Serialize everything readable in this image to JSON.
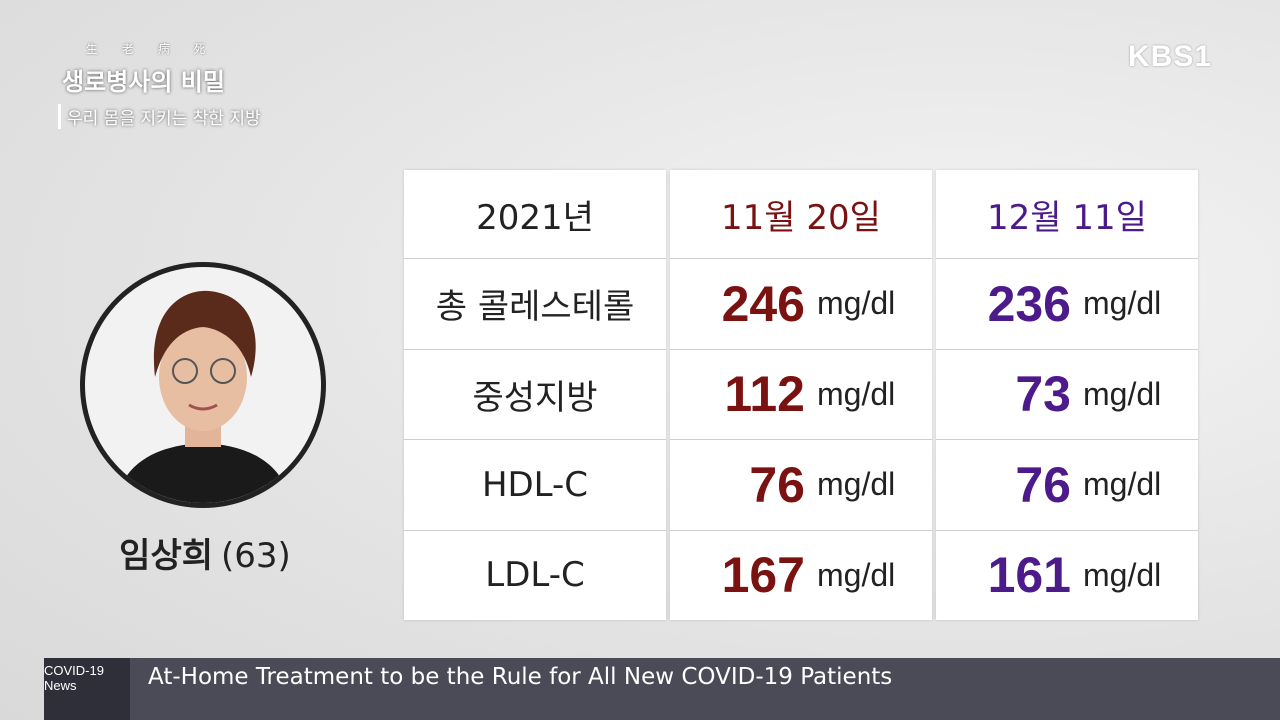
{
  "broadcast": {
    "channel": "KBS1",
    "program_hanja": "生 老 病 死",
    "program_title": "생로병사의 비밀",
    "episode_title": "우리 몸을 지키는 착한 지방"
  },
  "person": {
    "name": "임상희",
    "age": "(63)"
  },
  "table": {
    "header": [
      "2021년",
      "11월 20일",
      "12월 11일"
    ],
    "rows": [
      {
        "label": "총 콜레스테롤",
        "values": [
          {
            "value": 246,
            "unit": "mg/dl"
          },
          {
            "value": 236,
            "unit": "mg/dl"
          }
        ]
      },
      {
        "label": "중성지방",
        "values": [
          {
            "value": 112,
            "unit": "mg/dl"
          },
          {
            "value": 73,
            "unit": "mg/dl"
          }
        ]
      },
      {
        "label": "HDL-C",
        "values": [
          {
            "value": 76,
            "unit": "mg/dl"
          },
          {
            "value": 76,
            "unit": "mg/dl"
          }
        ]
      },
      {
        "label": "LDL-C",
        "values": [
          {
            "value": 167,
            "unit": "mg/dl"
          },
          {
            "value": 161,
            "unit": "mg/dl"
          }
        ]
      }
    ]
  },
  "ticker": {
    "label": "COVID-19 News",
    "headline": "At-Home Treatment to be the Rule for All New COVID-19 Patients"
  }
}
